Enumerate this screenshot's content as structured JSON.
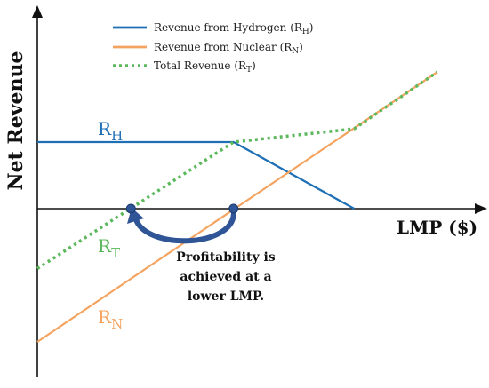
{
  "chart_data": {
    "type": "line",
    "title": "",
    "xlabel": "LMP ($)",
    "ylabel": "Net Revenue",
    "grid": false,
    "legend_position": "top",
    "series": [
      {
        "name": "Revenue from Hydrogen (R",
        "subscript": "H",
        "legend_suffix": ")",
        "label_main": "R",
        "label_sub": "H",
        "color": "#1f6fb5",
        "style": "solid",
        "x": [
          0,
          5.45,
          8.8
        ],
        "y": [
          1,
          1,
          0
        ]
      },
      {
        "name": "Revenue from Nuclear (R",
        "subscript": "N",
        "legend_suffix": ")",
        "label_main": "R",
        "label_sub": "N",
        "color": "#f4a460",
        "style": "solid",
        "x": [
          0,
          11.1
        ],
        "y": [
          -2,
          2.05
        ]
      },
      {
        "name": "Total Revenue (R",
        "subscript": "T",
        "legend_suffix": ")",
        "label_main": "R",
        "label_sub": "T",
        "color": "#5cb85c",
        "style": "dotted",
        "x": [
          0,
          5.45,
          8.8,
          11.1
        ],
        "y": [
          -0.9,
          1,
          1.2,
          2.05
        ]
      }
    ],
    "markers": [
      {
        "name": "total-breakeven",
        "x": 2.6,
        "y": 0
      },
      {
        "name": "nuclear-breakeven",
        "x": 5.45,
        "y": 0
      }
    ],
    "annotation": {
      "lines": [
        "Profitability is",
        "achieved at a",
        "lower LMP."
      ],
      "arrow_color": "#2f5597"
    }
  }
}
